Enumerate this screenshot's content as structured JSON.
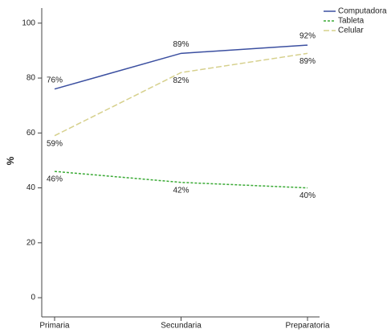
{
  "chart_data": {
    "type": "line",
    "ylabel": "%",
    "categories": [
      "Primaria",
      "Secundaria",
      "Preparatoria"
    ],
    "series": [
      {
        "name": "Computadora",
        "color": "#3b4fa0",
        "dash": "none",
        "values": [
          76,
          89,
          92
        ],
        "value_labels": [
          "76%",
          "89%",
          "92%"
        ]
      },
      {
        "name": "Tableta",
        "color": "#3aaa35",
        "dash": "3 2",
        "values": [
          46,
          42,
          40
        ],
        "value_labels": [
          "46%",
          "42%",
          "40%"
        ]
      },
      {
        "name": "Celular",
        "color": "#d6d08c",
        "dash": "7 3",
        "values": [
          59,
          82,
          89
        ],
        "value_labels": [
          "59%",
          "82%",
          "89%"
        ]
      }
    ],
    "ylim": [
      -7,
      105.5
    ],
    "yticks": [
      0,
      20,
      40,
      60,
      80,
      100
    ]
  }
}
